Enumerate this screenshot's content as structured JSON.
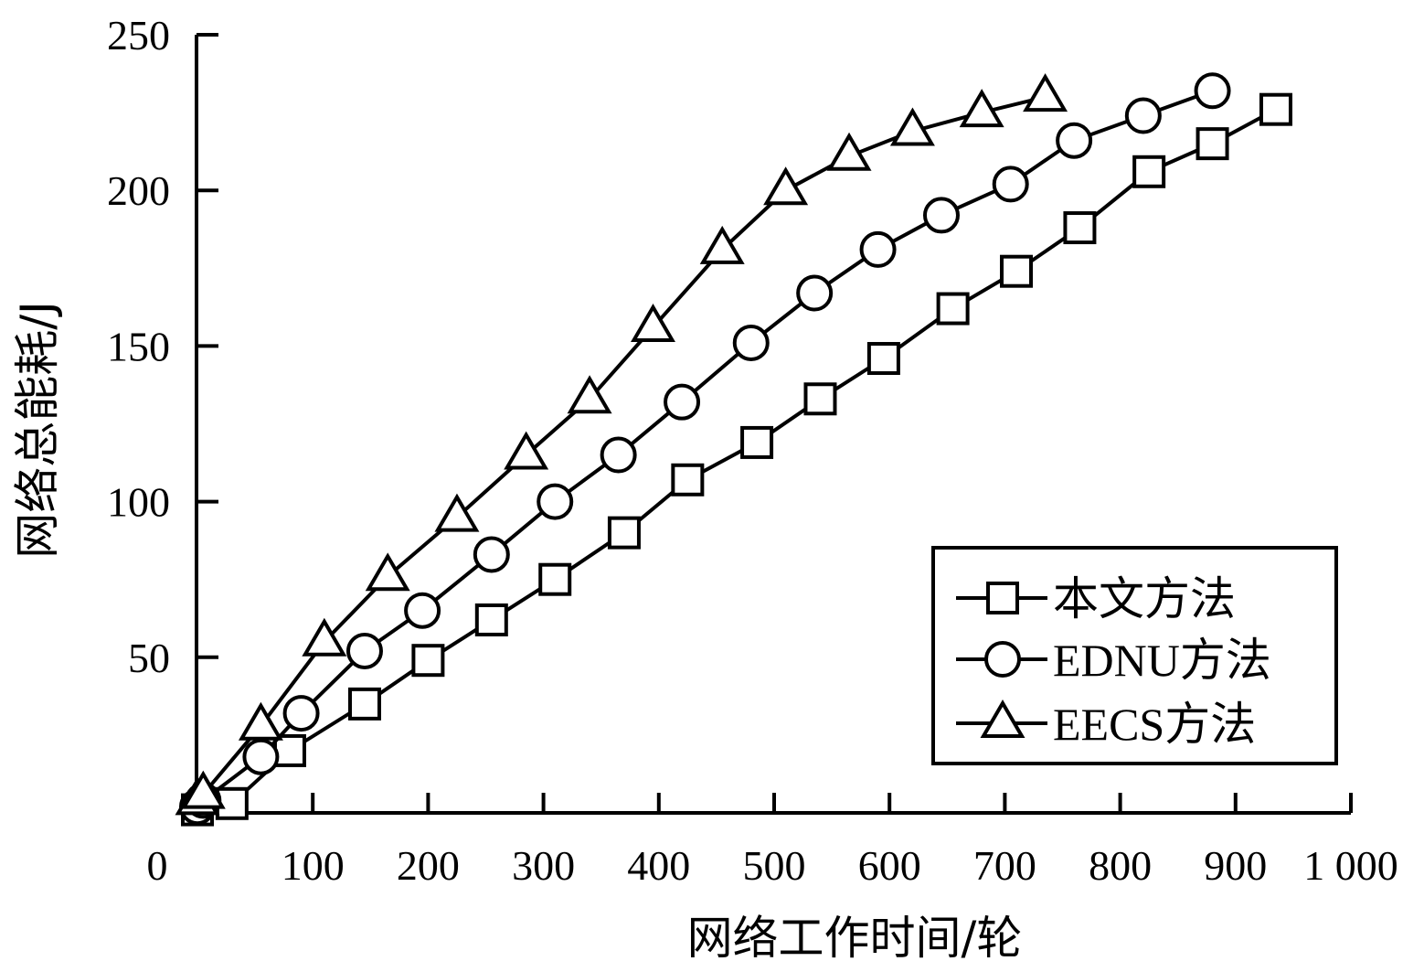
{
  "chart_data": {
    "type": "line",
    "xlabel": "网络工作时间/轮",
    "ylabel": "网络总能耗/J",
    "xlim": [
      0,
      1000
    ],
    "ylim": [
      0,
      250
    ],
    "x_ticks": [
      "0",
      "100",
      "200",
      "300",
      "400",
      "500",
      "600",
      "700",
      "800",
      "900",
      "1 000"
    ],
    "y_ticks": [
      "50",
      "100",
      "150",
      "200",
      "250"
    ],
    "legend_position": "bottom-right",
    "series": [
      {
        "name": "本文方法",
        "marker": "square",
        "x": [
          0,
          30,
          80,
          145,
          200,
          255,
          310,
          370,
          425,
          485,
          540,
          595,
          655,
          710,
          765,
          825,
          880,
          935
        ],
        "y": [
          1,
          3,
          20,
          35,
          49,
          62,
          75,
          90,
          107,
          119,
          133,
          146,
          162,
          174,
          188,
          206,
          215,
          226
        ]
      },
      {
        "name": "EDNU方法",
        "marker": "circle",
        "x": [
          0,
          5,
          55,
          90,
          145,
          195,
          255,
          310,
          365,
          420,
          480,
          535,
          590,
          645,
          705,
          760,
          820,
          880
        ],
        "y": [
          2,
          4,
          18,
          32,
          52,
          65,
          83,
          100,
          115,
          132,
          151,
          167,
          181,
          192,
          202,
          216,
          224,
          232
        ]
      },
      {
        "name": "EECS方法",
        "marker": "triangle",
        "x": [
          0,
          5,
          55,
          110,
          165,
          225,
          285,
          340,
          395,
          455,
          510,
          565,
          620,
          680,
          735
        ],
        "y": [
          4,
          6,
          28,
          55,
          76,
          95,
          115,
          133,
          156,
          181,
          200,
          211,
          219,
          225,
          230
        ]
      }
    ]
  }
}
